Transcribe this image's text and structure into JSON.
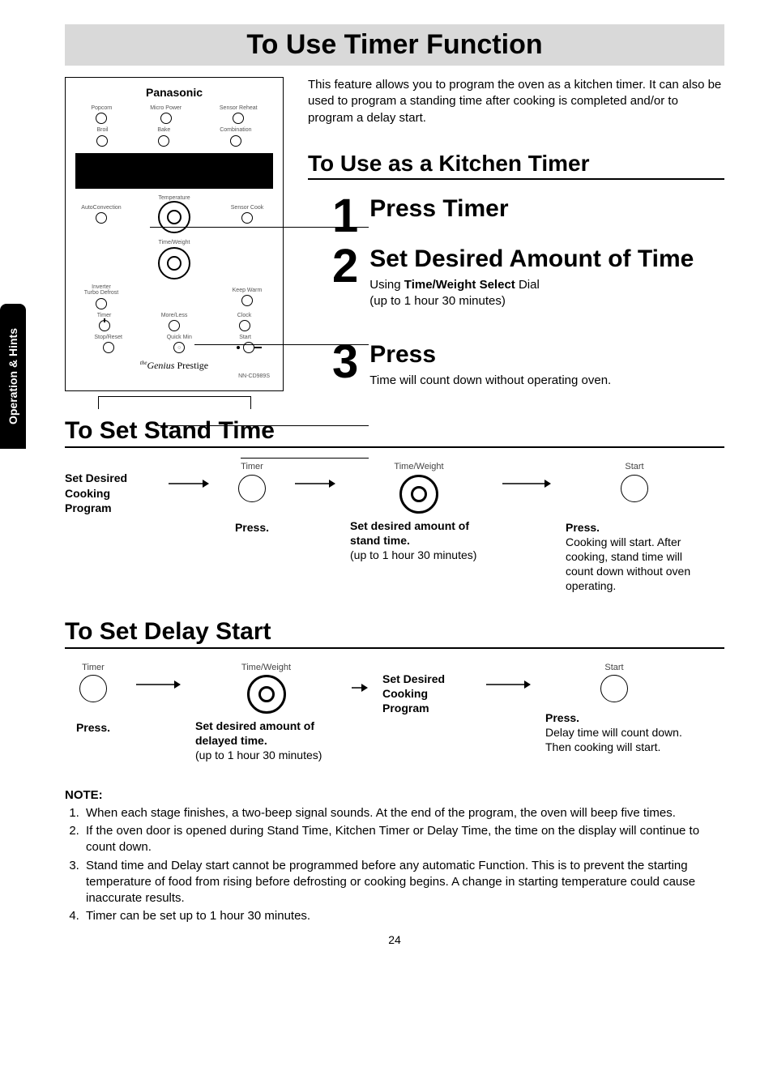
{
  "side_tab": "Operation & Hints",
  "title": "To Use Timer Function",
  "intro": "This feature allows you to program the oven as a kitchen timer. It can also be used to program a standing time after cooking is completed and/or to program a delay start.",
  "kitchen_timer_heading": "To Use as a Kitchen Timer",
  "steps": [
    {
      "num": "1",
      "title": "Press Timer",
      "sub": ""
    },
    {
      "num": "2",
      "title": "Set Desired Amount of Time",
      "sub_html": "Using <b>Time/Weight Select</b> Dial<br>(up to 1 hour 30 minutes)"
    },
    {
      "num": "3",
      "title": "Press",
      "sub": "Time will count down without operating oven."
    }
  ],
  "panel": {
    "brand": "Panasonic",
    "row1": [
      "Popcorn",
      "Micro Power",
      "Sensor Reheat"
    ],
    "row2": [
      "Broil",
      "Bake",
      "Combination"
    ],
    "mid_left": "AutoConvection",
    "mid_center": "Temperature",
    "mid_right": "Sensor Cook",
    "dial2_label": "Time/Weight",
    "bottom_left": "Inverter\nTurbo Defrost",
    "bottom_right": "Keep Warm",
    "row3": [
      "Timer",
      "More/Less",
      "Clock"
    ],
    "row4": [
      "Stop/Reset",
      "Quick Min",
      "Start"
    ],
    "prestige_prefix": "the",
    "prestige_main": "Genius",
    "prestige_suffix": "Prestige",
    "model": "NN-CD989S"
  },
  "stand_time_heading": "To Set Stand Time",
  "stand_time": {
    "step1": "Set Desired Cooking Program",
    "timer_label": "Timer",
    "timer_cap": "Press.",
    "dial_label": "Time/Weight",
    "dial_cap_b": "Set desired amount of stand time.",
    "dial_cap": "(up to 1 hour 30 minutes)",
    "start_label": "Start",
    "start_cap_b": "Press.",
    "start_cap": "Cooking will start. After cooking, stand time will count down without oven operating."
  },
  "delay_start_heading": "To Set Delay Start",
  "delay_start": {
    "timer_label": "Timer",
    "timer_cap": "Press.",
    "dial_label": "Time/Weight",
    "dial_cap_b": "Set desired amount of delayed time.",
    "dial_cap": "(up to 1 hour 30 minutes)",
    "step3": "Set Desired Cooking Program",
    "start_label": "Start",
    "start_cap_b": "Press.",
    "start_cap": "Delay time will count down. Then cooking will start."
  },
  "notes_heading": "NOTE:",
  "notes": [
    "When each stage finishes, a two-beep signal sounds. At the end of the program, the oven will beep five times.",
    "If the oven door is opened during Stand Time, Kitchen Timer or Delay Time, the time on the display will continue to count down.",
    "Stand time and Delay start cannot be programmed before any automatic Function. This is to prevent the starting temperature of food from rising before defrosting or cooking begins. A change in starting temperature could cause inaccurate results.",
    "Timer can be set up to 1 hour 30 minutes."
  ],
  "page_number": "24",
  "colors": {
    "banner_bg": "#d9d9d9",
    "text": "#000000",
    "bg": "#ffffff"
  }
}
